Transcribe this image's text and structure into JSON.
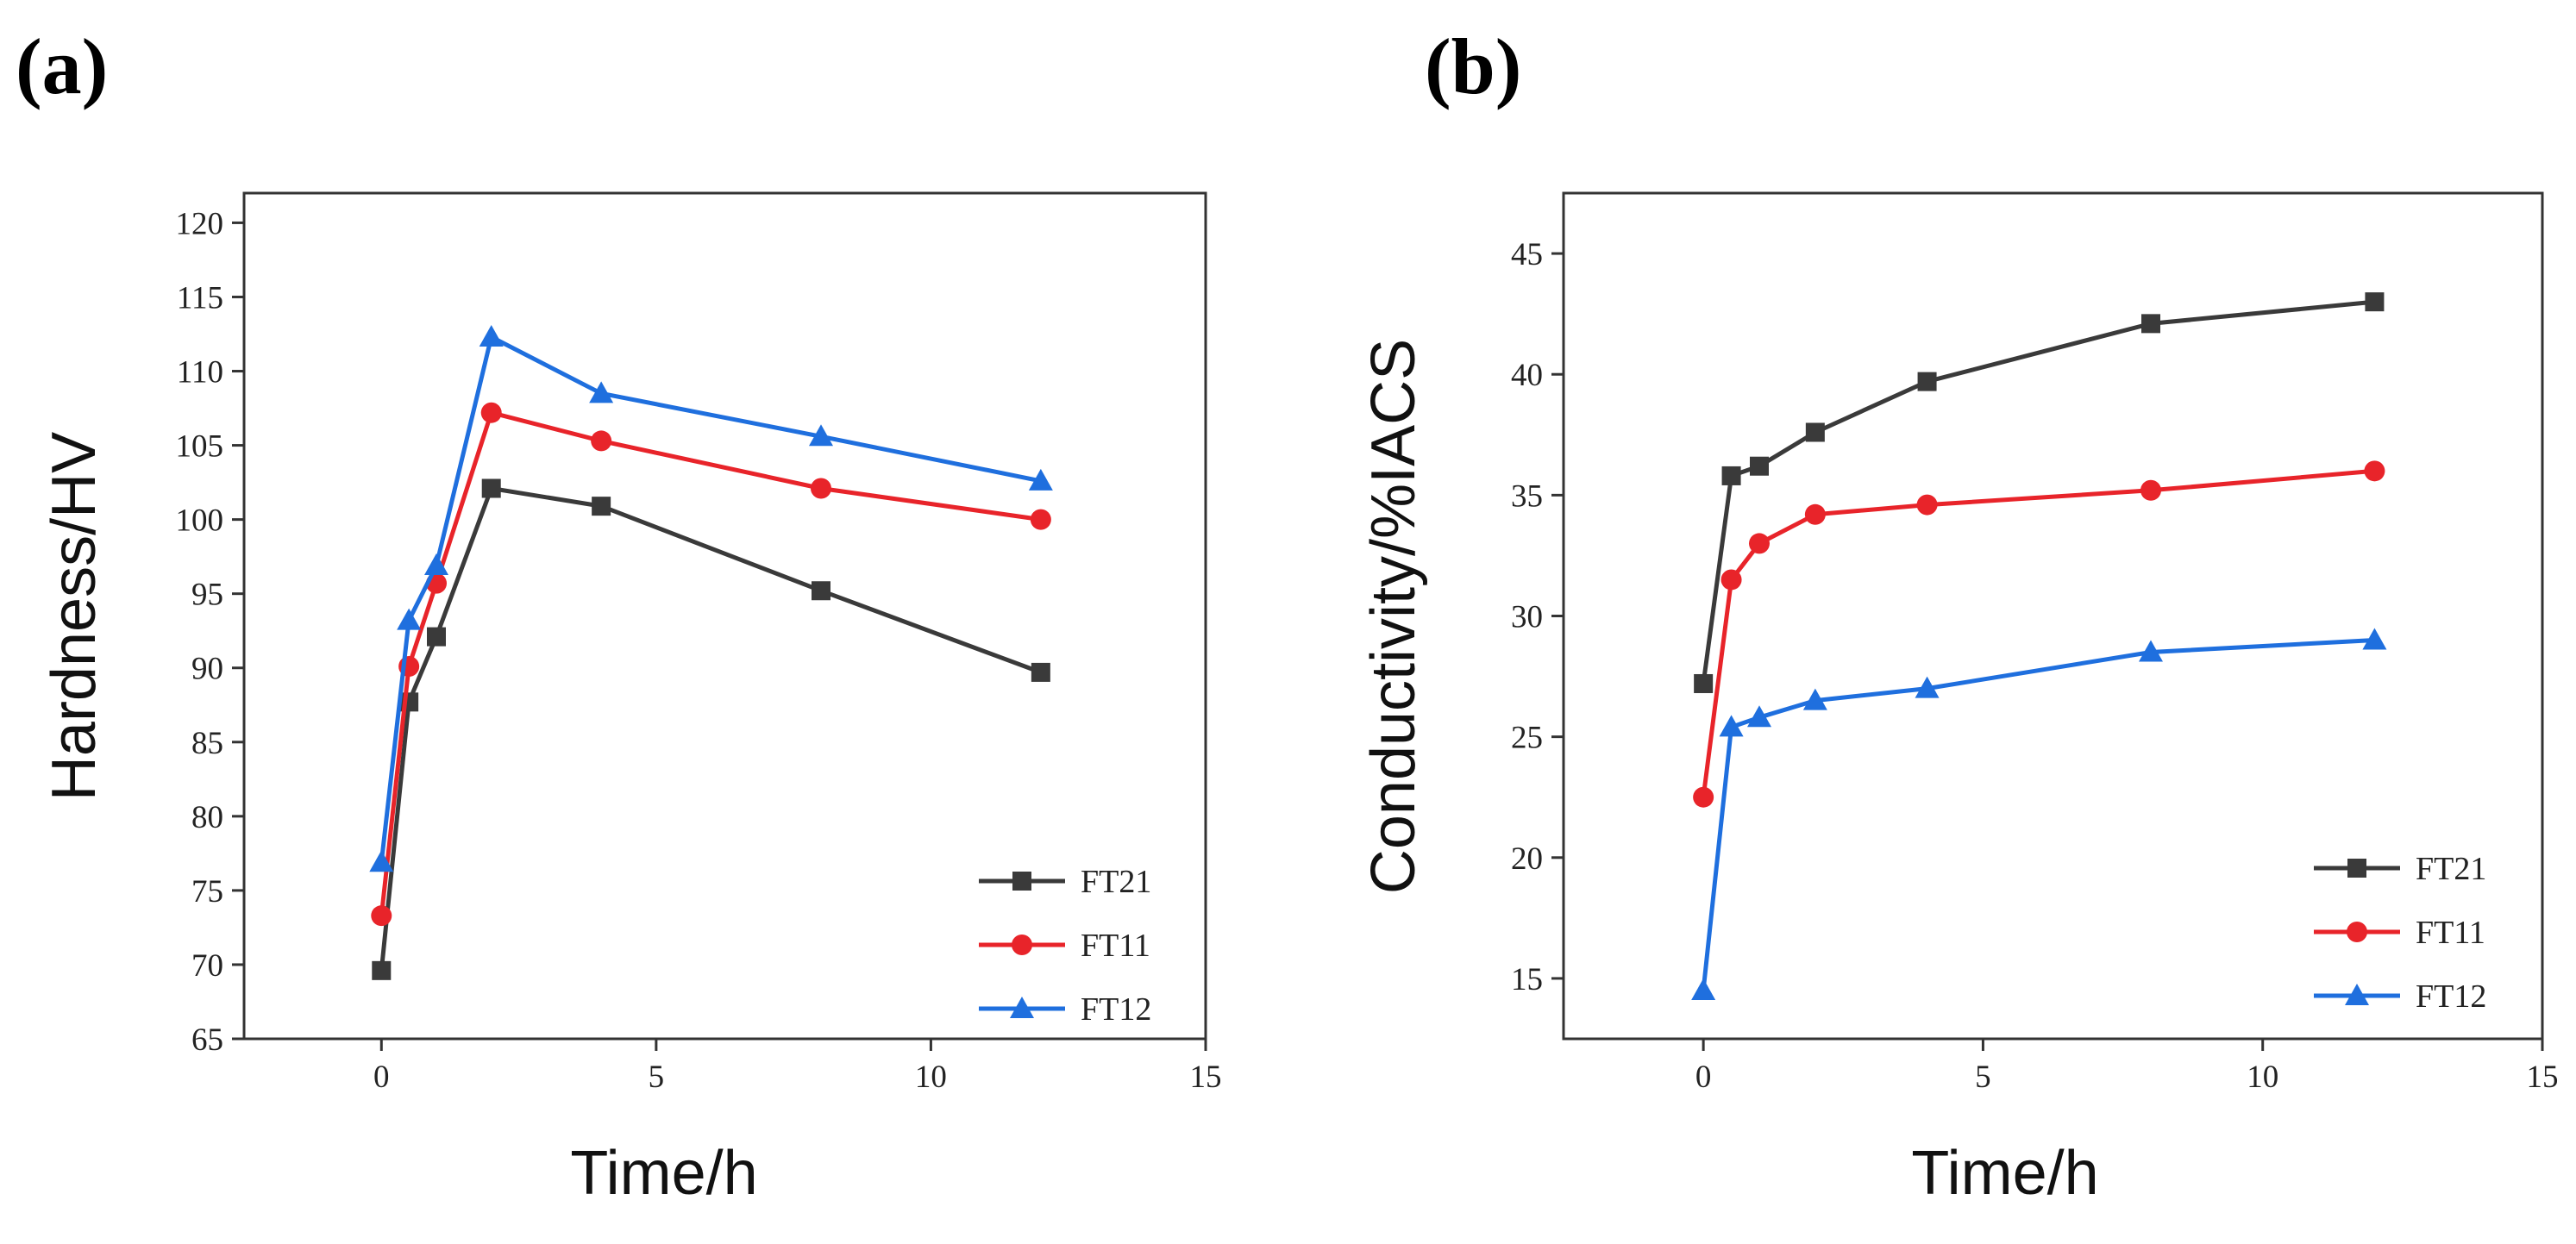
{
  "chart_data": [
    {
      "type": "line",
      "panel_label": "(a)",
      "xlabel": "Time/h",
      "ylabel": "Hardness/HV",
      "xlim": [
        -2.5,
        15
      ],
      "ylim": [
        65,
        122
      ],
      "xticks": [
        0,
        5,
        10,
        15
      ],
      "yticks": [
        65,
        70,
        75,
        80,
        85,
        90,
        95,
        100,
        105,
        110,
        115,
        120
      ],
      "legend_position": "bottom-right",
      "x": [
        0,
        0.5,
        1,
        2,
        4,
        8,
        12
      ],
      "series": [
        {
          "name": "FT21",
          "marker": "square",
          "color": "#3a3a3a",
          "values": [
            69.6,
            87.7,
            92.1,
            102.1,
            100.9,
            95.2,
            89.7
          ]
        },
        {
          "name": "FT11",
          "marker": "circle",
          "color": "#e8242a",
          "values": [
            73.3,
            90.1,
            95.7,
            107.2,
            105.3,
            102.1,
            100.0
          ]
        },
        {
          "name": "FT12",
          "marker": "triangle",
          "color": "#1f6fde",
          "values": [
            76.9,
            93.2,
            96.9,
            112.3,
            108.5,
            105.6,
            102.6
          ]
        }
      ]
    },
    {
      "type": "line",
      "panel_label": "(b)",
      "xlabel": "Time/h",
      "ylabel": "Conductivity/%IACS",
      "xlim": [
        -2.5,
        15
      ],
      "ylim": [
        12.5,
        47.5
      ],
      "xticks": [
        0,
        5,
        10,
        15
      ],
      "yticks": [
        15,
        20,
        25,
        30,
        35,
        40,
        45
      ],
      "legend_position": "bottom-right",
      "x": [
        0,
        0.5,
        1,
        2,
        4,
        8,
        12
      ],
      "series": [
        {
          "name": "FT21",
          "marker": "square",
          "color": "#3a3a3a",
          "values": [
            27.2,
            35.8,
            36.2,
            37.6,
            39.7,
            42.1,
            43.0
          ]
        },
        {
          "name": "FT11",
          "marker": "circle",
          "color": "#e8242a",
          "values": [
            22.5,
            31.5,
            33.0,
            34.2,
            34.6,
            35.2,
            36.0
          ]
        },
        {
          "name": "FT12",
          "marker": "triangle",
          "color": "#1f6fde",
          "values": [
            14.5,
            25.4,
            25.8,
            26.5,
            27.0,
            28.5,
            29.0
          ]
        }
      ]
    }
  ]
}
